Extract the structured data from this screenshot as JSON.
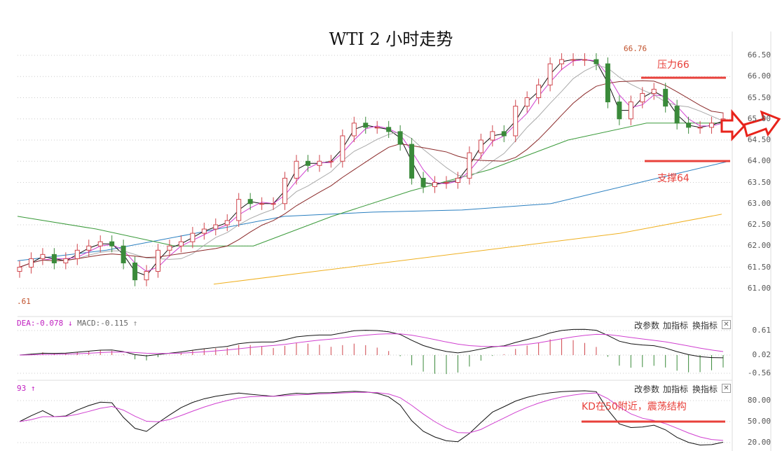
{
  "title": "WTI 2 小时走势",
  "price_axis": [
    "66.50",
    "66.00",
    "65.50",
    "65.00",
    "64.50",
    "64.00",
    "63.50",
    "63.00",
    "62.50",
    "62.00",
    "61.50",
    "61.00"
  ],
  "macd_axis": [
    "0.61",
    "0.02",
    "-0.56"
  ],
  "kd_axis": [
    "80.00",
    "50.00",
    "20.00"
  ],
  "macd_label": {
    "dea": "DEA:-0.078",
    "dea_arrow": "↓",
    "macd": "MACD:-0.115",
    "macd_arrow": "↑"
  },
  "kd_label": {
    "value": "93",
    "arrow": "↑"
  },
  "low_label": ".61",
  "high_label": "66.76",
  "buttons": {
    "params": "改参数",
    "add": "加指标",
    "swap": "换指标",
    "close": "✕"
  },
  "annotations": {
    "resistance": "压力66",
    "support": "支撑64",
    "kd_note": "KD在50附近，震荡结构"
  },
  "colors": {
    "up": "#d0464d",
    "down": "#3a8a3a",
    "ann": "#e8413b"
  },
  "chart_data": {
    "type": "candlestick",
    "title": "WTI 2 小时走势",
    "ylim": [
      60.8,
      66.8
    ],
    "resistance": 66.0,
    "support": 64.0,
    "closes": [
      61.5,
      61.7,
      61.8,
      61.6,
      61.7,
      61.9,
      62.0,
      62.1,
      62.0,
      61.6,
      61.2,
      61.4,
      61.9,
      62.0,
      62.1,
      62.3,
      62.4,
      62.5,
      62.6,
      63.1,
      63.0,
      63.0,
      63.0,
      63.6,
      64.0,
      63.9,
      64.0,
      64.0,
      64.6,
      64.9,
      64.8,
      64.8,
      64.7,
      64.4,
      63.6,
      63.4,
      63.5,
      63.5,
      63.6,
      64.2,
      64.5,
      64.7,
      64.6,
      65.3,
      65.5,
      65.8,
      66.3,
      66.4,
      66.4,
      66.4,
      66.3,
      65.4,
      65.0,
      65.4,
      65.6,
      65.7,
      65.3,
      64.9,
      64.8,
      64.8,
      64.9,
      65.0
    ],
    "ma_blue": [
      61.65,
      61.9,
      62.3,
      62.7,
      62.8,
      62.85,
      63.0,
      63.5,
      64.0
    ],
    "ma_green": [
      62.7,
      62.4,
      62.0,
      62.0,
      62.7,
      63.3,
      63.8,
      64.5,
      64.9,
      64.9
    ],
    "ma_yellow": [
      61.1,
      61.4,
      61.7,
      62.0,
      62.3,
      62.75
    ]
  }
}
